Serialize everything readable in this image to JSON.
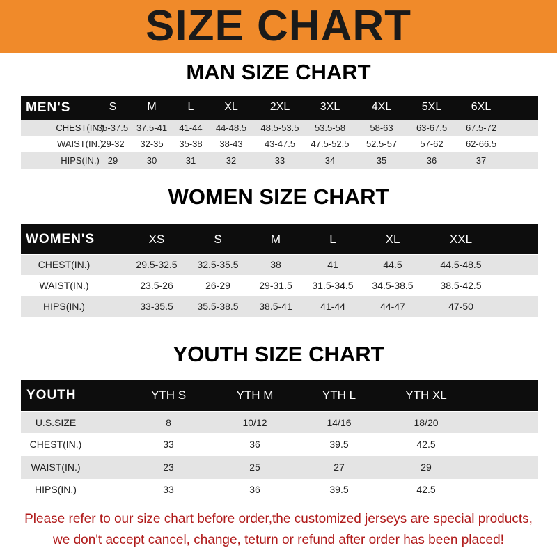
{
  "banner": {
    "title": "SIZE CHART",
    "color": "#f08a2a"
  },
  "men": {
    "title": "MAN SIZE CHART",
    "header": "MEN'S",
    "sizes": [
      "S",
      "M",
      "L",
      "XL",
      "2XL",
      "3XL",
      "4XL",
      "5XL",
      "6XL"
    ],
    "rows": [
      {
        "label": "CHEST(IN.)",
        "values": [
          "35-37.5",
          "37.5-41",
          "41-44",
          "44-48.5",
          "48.5-53.5",
          "53.5-58",
          "58-63",
          "63-67.5",
          "67.5-72"
        ]
      },
      {
        "label": "WAIST(IN.)",
        "values": [
          "29-32",
          "32-35",
          "35-38",
          "38-43",
          "43-47.5",
          "47.5-52.5",
          "52.5-57",
          "57-62",
          "62-66.5"
        ]
      },
      {
        "label": "HIPS(IN.)",
        "values": [
          "29",
          "30",
          "31",
          "32",
          "33",
          "34",
          "35",
          "36",
          "37"
        ]
      }
    ]
  },
  "women": {
    "title": "WOMEN SIZE CHART",
    "header": "WOMEN'S",
    "sizes": [
      "XS",
      "S",
      "M",
      "L",
      "XL",
      "XXL"
    ],
    "rows": [
      {
        "label": "CHEST(IN.)",
        "values": [
          "29.5-32.5",
          "32.5-35.5",
          "38",
          "41",
          "44.5",
          "44.5-48.5"
        ]
      },
      {
        "label": "WAIST(IN.)",
        "values": [
          "23.5-26",
          "26-29",
          "29-31.5",
          "31.5-34.5",
          "34.5-38.5",
          "38.5-42.5"
        ]
      },
      {
        "label": "HIPS(IN.)",
        "values": [
          "33-35.5",
          "35.5-38.5",
          "38.5-41",
          "41-44",
          "44-47",
          "47-50"
        ]
      }
    ]
  },
  "youth": {
    "title": "YOUTH SIZE CHART",
    "header": "YOUTH",
    "sizes": [
      "YTH S",
      "YTH M",
      "YTH L",
      "YTH XL"
    ],
    "rows": [
      {
        "label": "U.S.SIZE",
        "values": [
          "8",
          "10/12",
          "14/16",
          "18/20"
        ]
      },
      {
        "label": "CHEST(IN.)",
        "values": [
          "33",
          "36",
          "39.5",
          "42.5"
        ]
      },
      {
        "label": "WAIST(IN.)",
        "values": [
          "23",
          "25",
          "27",
          "29"
        ]
      },
      {
        "label": "HIPS(IN.)",
        "values": [
          "33",
          "36",
          "39.5",
          "42.5"
        ]
      }
    ]
  },
  "footer": {
    "line1": "Please refer to our size chart before order,the customized jerseys are special products,",
    "line2": "we don't accept cancel, change, teturn or refund after order has been placed!",
    "color": "#b01a1a"
  }
}
